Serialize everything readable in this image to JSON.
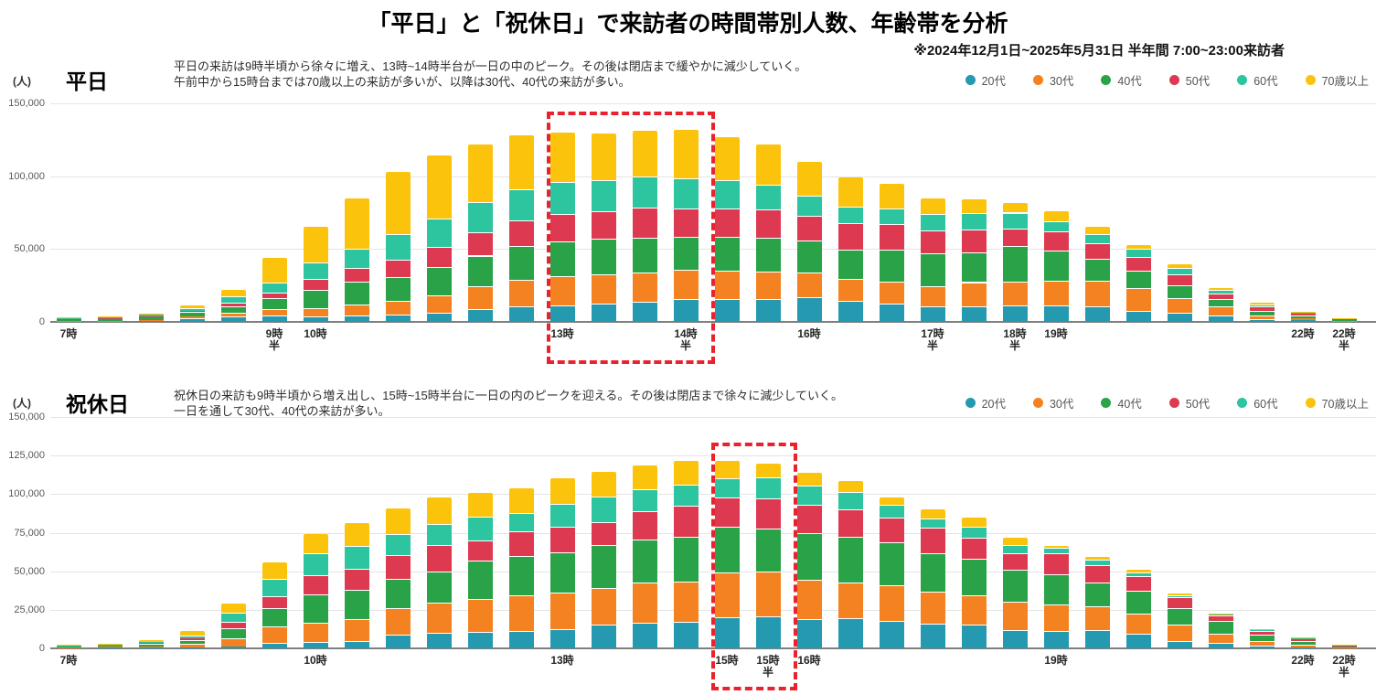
{
  "header": {
    "title": "「平日」と「祝休日」で来訪者の時間帯別人数、年齢帯を分析",
    "subtitle": "※2024年12月1日~2025年5月31日 半年間 7:00~23:00来訪者"
  },
  "legend": [
    {
      "label": "20代",
      "color": "#2499b0"
    },
    {
      "label": "30代",
      "color": "#f58220"
    },
    {
      "label": "40代",
      "color": "#2aa348"
    },
    {
      "label": "50代",
      "color": "#dd3a52"
    },
    {
      "label": "60代",
      "color": "#2cc5a0"
    },
    {
      "label": "70歳以上",
      "color": "#fcc30d"
    }
  ],
  "chart_data": [
    {
      "type": "bar",
      "stacked": true,
      "section_label": "平日",
      "unit_label": "(人)",
      "description_lines": [
        "平日の来訪は9時半頃から徐々に増え、13時~14時半台が一日の中のピーク。その後は閉店まで緩やかに減少していく。",
        "午前中から15時台までは70歳以上の来訪が多いが、以降は30代、40代の来訪が多い。"
      ],
      "y_axis": {
        "max": 150000,
        "ticks": [
          0,
          50000,
          100000,
          150000
        ]
      },
      "x_tick_indices": [
        0,
        5,
        6,
        12,
        15,
        18,
        21,
        23,
        24,
        30,
        31
      ],
      "highlight": {
        "start_index": 12,
        "end_index": 15
      },
      "categories": [
        "7時",
        "7時半",
        "8時",
        "8時半",
        "9時",
        "9時半",
        "10時",
        "10時半",
        "11時",
        "11時半",
        "12時",
        "12時半",
        "13時",
        "13時半",
        "14時",
        "14時半",
        "15時",
        "15時半",
        "16時",
        "16時半",
        "17時",
        "17時半",
        "18時",
        "18時半",
        "19時",
        "19時半",
        "20時",
        "20時半",
        "21時",
        "21時半",
        "22時",
        "22時半"
      ],
      "series": [
        {
          "name": "20代",
          "color": "#2499b0",
          "values": [
            100,
            200,
            400,
            2400,
            3500,
            4200,
            3800,
            4500,
            4800,
            6500,
            9000,
            10500,
            11000,
            12500,
            14000,
            15700,
            15500,
            15700,
            16700,
            14700,
            12700,
            10700,
            10700,
            11300,
            11600,
            10400,
            7400,
            6000,
            4400,
            1600,
            1000,
            200
          ]
        },
        {
          "name": "30代",
          "color": "#f58220",
          "values": [
            200,
            400,
            700,
            1300,
            2500,
            4600,
            5500,
            7500,
            9500,
            12000,
            15500,
            18500,
            20500,
            20000,
            20000,
            19800,
            19500,
            19100,
            17100,
            15000,
            15000,
            14000,
            16600,
            16400,
            16800,
            17600,
            15600,
            10400,
            6000,
            2800,
            1300,
            300
          ]
        },
        {
          "name": "40代",
          "color": "#2aa348",
          "values": [
            700,
            1500,
            2400,
            2900,
            4800,
            7300,
            12500,
            15500,
            16500,
            19000,
            21000,
            23000,
            24000,
            24500,
            24000,
            23000,
            23500,
            23200,
            22100,
            20100,
            22100,
            22100,
            20500,
            24600,
            20600,
            15400,
            12000,
            8600,
            5200,
            3400,
            1800,
            400
          ]
        },
        {
          "name": "50代",
          "color": "#dd3a52",
          "values": [
            150,
            300,
            500,
            1000,
            2400,
            4200,
            7800,
            9500,
            12000,
            14000,
            16000,
            17500,
            18500,
            19000,
            20500,
            19500,
            19500,
            19000,
            17100,
            18100,
            17100,
            16100,
            15700,
            12000,
            13400,
            10600,
            9400,
            7400,
            4000,
            2600,
            1300,
            600
          ]
        },
        {
          "name": "60代",
          "color": "#2cc5a0",
          "values": [
            100,
            200,
            900,
            1700,
            4300,
            6900,
            11000,
            13500,
            17500,
            19500,
            20500,
            21500,
            22000,
            21500,
            21500,
            20500,
            19000,
            17000,
            13600,
            11100,
            11100,
            11100,
            10900,
            10700,
            6600,
            6000,
            6000,
            4600,
            2200,
            1800,
            900,
            150
          ]
        },
        {
          "name": "70歳以上",
          "color": "#fcc30d",
          "values": [
            50,
            100,
            600,
            2200,
            4500,
            17000,
            24500,
            34500,
            42500,
            43000,
            40000,
            37000,
            34000,
            32000,
            31000,
            33000,
            30000,
            27500,
            23400,
            20000,
            16500,
            10500,
            9600,
            6500,
            7000,
            5000,
            2600,
            2500,
            1200,
            800,
            300,
            100
          ]
        }
      ]
    },
    {
      "type": "bar",
      "stacked": true,
      "section_label": "祝休日",
      "unit_label": "(人)",
      "description_lines": [
        "祝休日の来訪も9時半頃から増え出し、15時~15時半台に一日の内のピークを迎える。その後は閉店まで徐々に減少していく。",
        "一日を通して30代、40代の来訪が多い。"
      ],
      "y_axis": {
        "max": 150000,
        "ticks": [
          0,
          25000,
          50000,
          75000,
          100000,
          125000,
          150000
        ]
      },
      "x_tick_indices": [
        0,
        6,
        12,
        16,
        17,
        18,
        24,
        30,
        31
      ],
      "highlight": {
        "start_index": 16,
        "end_index": 17
      },
      "categories": [
        "7時",
        "7時半",
        "8時",
        "8時半",
        "9時",
        "9時半",
        "10時",
        "10時半",
        "11時",
        "11時半",
        "12時",
        "12時半",
        "13時",
        "13時半",
        "14時",
        "14時半",
        "15時",
        "15時半",
        "16時",
        "16時半",
        "17時",
        "17時半",
        "18時",
        "18時半",
        "19時",
        "19時半",
        "20時",
        "20時半",
        "21時",
        "21時半",
        "22時",
        "22時半"
      ],
      "series": [
        {
          "name": "20代",
          "color": "#2499b0",
          "values": [
            100,
            200,
            350,
            700,
            1300,
            3300,
            4200,
            4700,
            9000,
            10000,
            10500,
            11500,
            12500,
            15500,
            16800,
            17400,
            20100,
            20700,
            18700,
            19300,
            17500,
            16300,
            15400,
            12000,
            11400,
            11800,
            9500,
            4900,
            3500,
            1600,
            600,
            100
          ]
        },
        {
          "name": "30代",
          "color": "#f58220",
          "values": [
            250,
            500,
            900,
            2200,
            5500,
            11000,
            12500,
            14000,
            17000,
            19500,
            21700,
            22800,
            23800,
            23800,
            25800,
            25800,
            29000,
            29300,
            25600,
            23600,
            23500,
            20400,
            18700,
            18000,
            16800,
            15400,
            13200,
            10500,
            6000,
            3300,
            1700,
            400
          ]
        },
        {
          "name": "40代",
          "color": "#2aa348",
          "values": [
            350,
            900,
            1600,
            2600,
            6500,
            12000,
            18500,
            19500,
            19300,
            20300,
            25000,
            25800,
            25800,
            27800,
            27800,
            29100,
            29500,
            27600,
            30500,
            29500,
            27500,
            24700,
            24000,
            21000,
            19700,
            15700,
            14700,
            10800,
            8400,
            4000,
            2200,
            300
          ]
        },
        {
          "name": "50代",
          "color": "#dd3a52",
          "values": [
            150,
            250,
            500,
            1300,
            4000,
            7500,
            12500,
            13200,
            15300,
            17400,
            12500,
            15800,
            16800,
            14900,
            18400,
            20400,
            19500,
            19900,
            18300,
            17700,
            16500,
            17000,
            13800,
            10500,
            13800,
            10900,
            9500,
            6900,
            3400,
            2500,
            1800,
            500
          ]
        },
        {
          "name": "60代",
          "color": "#2cc5a0",
          "values": [
            100,
            250,
            450,
            1700,
            5800,
            11000,
            14000,
            15100,
            13500,
            13200,
            15800,
            12000,
            14500,
            16200,
            14300,
            13300,
            12400,
            13100,
            12200,
            11200,
            7800,
            5800,
            7100,
            5500,
            3500,
            3900,
            2300,
            1400,
            1000,
            700,
            400,
            100
          ]
        },
        {
          "name": "70歳以上",
          "color": "#fcc30d",
          "values": [
            250,
            500,
            1200,
            3000,
            5900,
            10700,
            12300,
            15000,
            16900,
            17200,
            15500,
            15700,
            16600,
            16400,
            15400,
            15500,
            10800,
            9400,
            8500,
            7400,
            5200,
            5800,
            5700,
            5000,
            1400,
            1600,
            1600,
            1000,
            400,
            300,
            200,
            100
          ]
        }
      ]
    }
  ]
}
